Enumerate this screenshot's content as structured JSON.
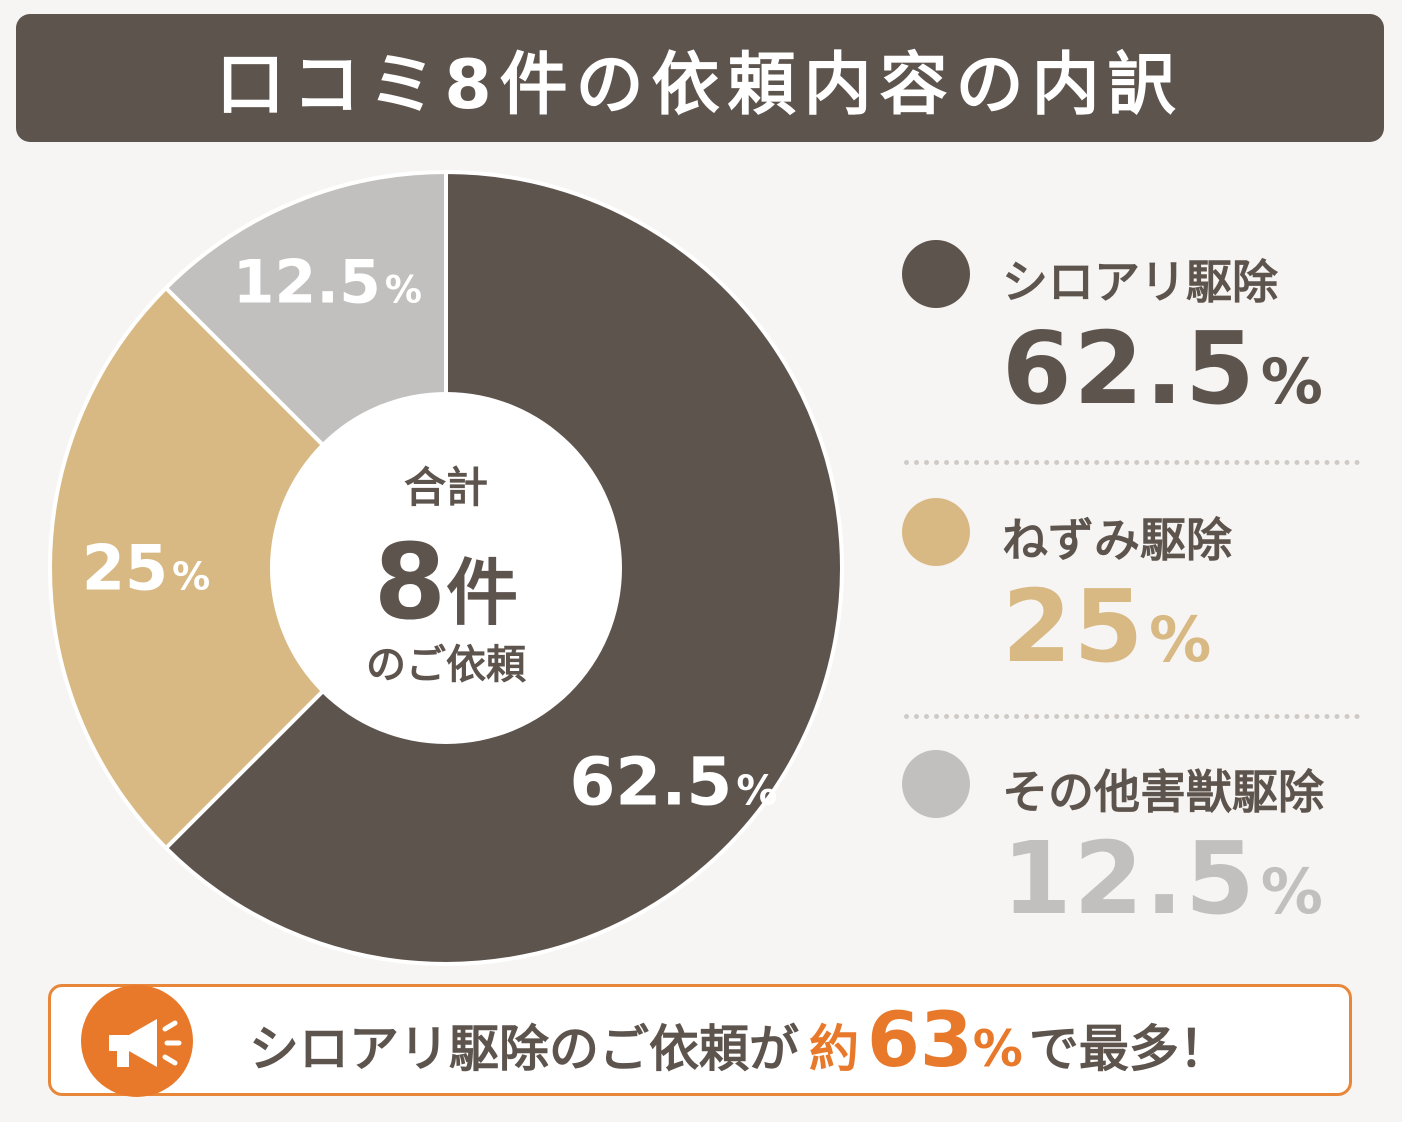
{
  "title": "口コミ8件の依頼内容の内訳",
  "colors": {
    "dark": "#5e544e",
    "tan": "#d8b983",
    "gray": "#c1c0bf",
    "accent": "#e8792b"
  },
  "center": {
    "line1": "合計",
    "count": "8",
    "unit": "件",
    "line3": "のご依頼"
  },
  "chart_data": {
    "type": "pie",
    "categories": [
      "シロアリ駆除",
      "ねずみ駆除",
      "その他害獣駆除"
    ],
    "values": [
      62.5,
      25,
      12.5
    ],
    "slice_labels": [
      "62.5",
      "25",
      "12.5"
    ],
    "unit": "%",
    "colors": [
      "#5e544e",
      "#d8b983",
      "#c1c0bf"
    ],
    "legend_position": "right"
  },
  "legend": [
    {
      "name": "シロアリ駆除",
      "value": "62.5",
      "unit": "%",
      "color": "#5e544e"
    },
    {
      "name": "ねずみ駆除",
      "value": "25",
      "unit": "%",
      "color": "#d8b983"
    },
    {
      "name": "その他害獣駆除",
      "value": "12.5",
      "unit": "%",
      "color": "#c1c0bf"
    }
  ],
  "callout": {
    "icon": "megaphone-icon",
    "text_before": "シロアリ駆除のご依頼が",
    "text_accent": "約",
    "number": "63",
    "unit": "%",
    "text_after": "で最多！"
  }
}
